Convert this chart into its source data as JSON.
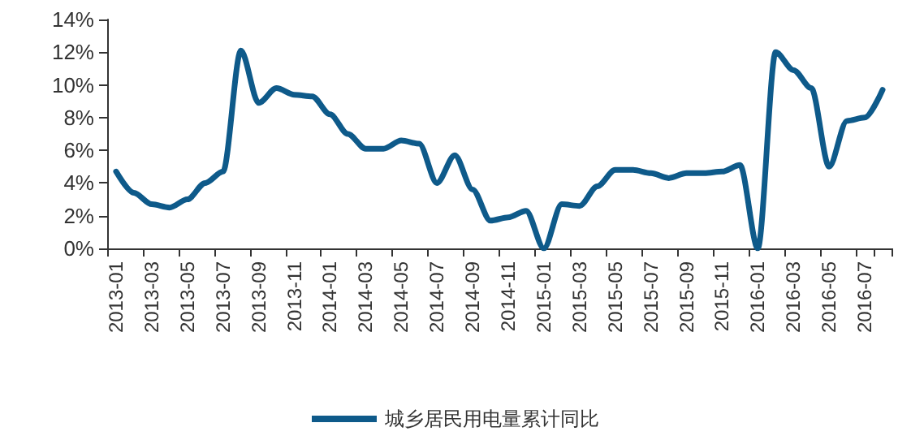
{
  "chart_data": {
    "type": "line",
    "categories": [
      "2013-01",
      null,
      "2013-03",
      null,
      "2013-05",
      null,
      "2013-07",
      null,
      "2013-09",
      null,
      "2013-11",
      null,
      "2014-01",
      null,
      "2014-03",
      null,
      "2014-05",
      null,
      "2014-07",
      null,
      "2014-09",
      null,
      "2014-11",
      null,
      "2015-01",
      null,
      "2015-03",
      null,
      "2015-05",
      null,
      "2015-07",
      null,
      "2015-09",
      null,
      "2015-11",
      null,
      "2016-01",
      null,
      "2016-03",
      null,
      "2016-05",
      null,
      "2016-07",
      null
    ],
    "series": [
      {
        "name": "城乡居民用电量累计同比",
        "color": "#0e5a8a",
        "values": [
          4.7,
          3.4,
          2.7,
          2.5,
          3.0,
          4.0,
          4.7,
          12.1,
          8.9,
          9.8,
          9.4,
          9.3,
          8.2,
          7.0,
          6.1,
          6.1,
          6.6,
          6.4,
          4.0,
          5.7,
          3.6,
          1.7,
          1.9,
          2.3,
          0,
          2.7,
          2.6,
          3.8,
          4.8,
          4.8,
          4.6,
          4.3,
          4.6,
          4.6,
          4.7,
          5.1,
          0,
          12.0,
          10.9,
          9.8,
          5.0,
          7.8,
          8.0,
          9.7
        ]
      }
    ],
    "ylim": [
      0,
      14
    ],
    "yticks": [
      {
        "value": 0,
        "label": "0%"
      },
      {
        "value": 2,
        "label": "2%"
      },
      {
        "value": 4,
        "label": "4%"
      },
      {
        "value": 6,
        "label": "6%"
      },
      {
        "value": 8,
        "label": "8%"
      },
      {
        "value": 10,
        "label": "10%"
      },
      {
        "value": 12,
        "label": "12%"
      },
      {
        "value": 14,
        "label": "14%"
      }
    ],
    "grid": false,
    "legend": "bottom",
    "marker": "none",
    "line_style": "solid"
  }
}
